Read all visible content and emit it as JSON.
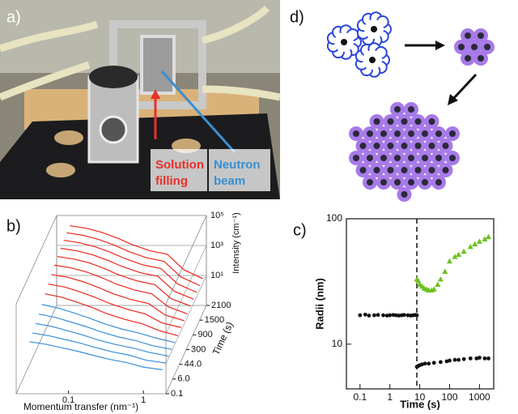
{
  "panels": {
    "a": {
      "label": "a)",
      "annotations": [
        {
          "lines": [
            "Solution",
            "filling"
          ],
          "color": "#e8302a"
        },
        {
          "lines": [
            "Neutron",
            "beam"
          ],
          "color": "#3a8fd0"
        }
      ]
    },
    "d": {
      "label": "d)"
    }
  },
  "chart_data": [
    {
      "type": "waterfall",
      "label": "b)",
      "xlabel": "Momentum transfer (nm⁻¹)",
      "ylabel": "Intensity (cm⁻¹)",
      "zlabel": "Time (s)",
      "log_x": true,
      "log_y": true,
      "x": [
        0.03,
        0.05,
        0.08,
        0.13,
        0.2,
        0.35,
        0.6,
        1,
        1.8
      ],
      "xlim": [
        0.02,
        2
      ],
      "xticks": [
        0.1,
        1
      ],
      "ylim": [
        0.1,
        100000
      ],
      "yticks": [
        {
          "value": 10,
          "label": "10¹"
        },
        {
          "value": 1000,
          "label": "10³"
        },
        {
          "value": 100000,
          "label": "10⁵"
        }
      ],
      "zticks": [
        2100,
        1500,
        900,
        300,
        {
          "value": 44,
          "label": "44.0"
        },
        {
          "value": 6,
          "label": "6.0"
        },
        0.1
      ],
      "series": [
        {
          "color": "#3a8fd8",
          "values": [
            300,
            200,
            120,
            70,
            40,
            20,
            12,
            6,
            4
          ]
        },
        {
          "color": "#3a8fd8",
          "values": [
            400,
            260,
            150,
            85,
            45,
            22,
            13,
            6,
            4
          ]
        },
        {
          "color": "#3a8fd8",
          "values": [
            600,
            380,
            200,
            100,
            50,
            24,
            14,
            7,
            4
          ]
        },
        {
          "color": "#3a8fd8",
          "values": [
            900,
            550,
            270,
            130,
            60,
            27,
            15,
            7,
            4
          ]
        },
        {
          "color": "#3a8fd8",
          "values": [
            1400,
            800,
            380,
            170,
            75,
            32,
            17,
            8,
            4
          ]
        },
        {
          "color": "#e8281e",
          "values": [
            2500,
            1500,
            700,
            300,
            120,
            50,
            25,
            9,
            4
          ]
        },
        {
          "color": "#e8281e",
          "values": [
            4000,
            2500,
            1200,
            500,
            200,
            80,
            40,
            10,
            5
          ]
        },
        {
          "color": "#e8281e",
          "values": [
            6000,
            4000,
            2000,
            800,
            320,
            130,
            70,
            12,
            5
          ]
        },
        {
          "color": "#e8281e",
          "values": [
            9000,
            6000,
            3200,
            1300,
            500,
            200,
            110,
            15,
            5
          ]
        },
        {
          "color": "#e8281e",
          "values": [
            12000,
            8000,
            4500,
            1800,
            700,
            280,
            160,
            18,
            6
          ]
        },
        {
          "color": "#e8281e",
          "values": [
            15000,
            10000,
            5500,
            2300,
            900,
            350,
            200,
            20,
            6
          ]
        },
        {
          "color": "#e8281e",
          "values": [
            18000,
            12000,
            6500,
            2700,
            1050,
            400,
            230,
            22,
            6
          ]
        },
        {
          "color": "#e8281e",
          "values": [
            20000,
            13500,
            7200,
            3000,
            1150,
            430,
            250,
            23,
            6
          ]
        },
        {
          "color": "#e8281e",
          "values": [
            21000,
            14000,
            7500,
            3100,
            1200,
            450,
            260,
            24,
            6
          ]
        }
      ]
    },
    {
      "type": "scatter",
      "label": "c)",
      "xlabel": "Time (s)",
      "ylabel": "Radii (nm)",
      "log_x": true,
      "log_y": true,
      "xlim": [
        0.035,
        3000
      ],
      "xticks": [
        0.1,
        1,
        10,
        100,
        1000
      ],
      "ylim": [
        4.4,
        100
      ],
      "yticks": [
        10,
        100
      ],
      "vline": 8,
      "series": [
        {
          "color": "#111111",
          "marker": "circle",
          "x": [
            0.1,
            0.15,
            0.2,
            0.3,
            0.4,
            0.6,
            0.8,
            1,
            1.3,
            1.6,
            2,
            2.5,
            3,
            4,
            5,
            6,
            7,
            8
          ],
          "values": [
            17,
            17.2,
            16.9,
            17,
            17.1,
            17,
            16.9,
            17,
            17.1,
            17,
            16.9,
            17,
            17.1,
            17,
            16.9,
            17,
            17.1,
            17
          ]
        },
        {
          "color": "#6cc020",
          "marker": "triangle",
          "x": [
            8,
            9,
            10,
            12,
            14,
            17,
            20,
            25,
            30,
            40,
            50,
            70,
            100,
            150,
            200,
            300,
            500,
            700,
            1000,
            1500,
            2000
          ],
          "values": [
            33,
            32,
            30,
            29,
            28,
            27.5,
            27,
            27,
            27.5,
            30,
            33,
            38,
            46,
            50,
            52,
            55,
            60,
            63,
            66,
            69,
            72
          ]
        },
        {
          "color": "#111111",
          "marker": "circle",
          "x": [
            8,
            9,
            10,
            12,
            15,
            20,
            30,
            50,
            80,
            100,
            150,
            200,
            300,
            500,
            800,
            1000,
            1500,
            2000
          ],
          "values": [
            6.6,
            6.7,
            6.8,
            6.9,
            7,
            7,
            7.1,
            7.2,
            7.3,
            7.4,
            7.5,
            7.5,
            7.6,
            7.7,
            7.7,
            7.8,
            7.7,
            7.7
          ]
        }
      ]
    }
  ]
}
